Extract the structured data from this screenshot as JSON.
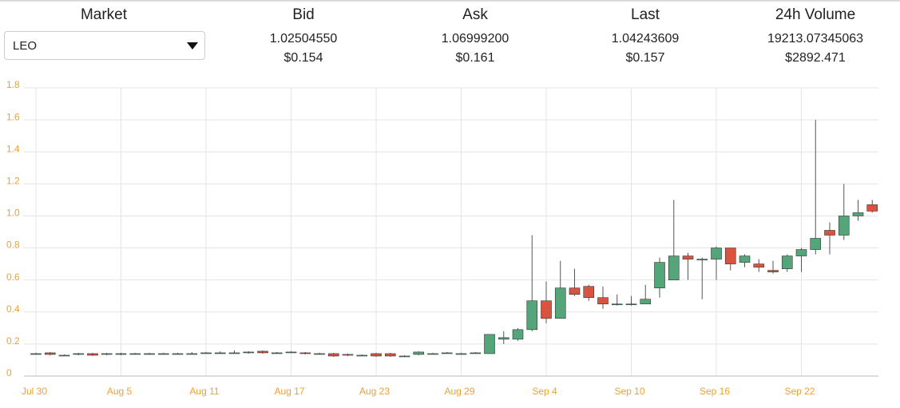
{
  "header": {
    "market_label": "Market",
    "selected_market": "LEO",
    "columns": [
      {
        "label": "Bid",
        "value": "1.02504550",
        "usd": "$0.154"
      },
      {
        "label": "Ask",
        "value": "1.06999200",
        "usd": "$0.161"
      },
      {
        "label": "Last",
        "value": "1.04243609",
        "usd": "$0.157"
      },
      {
        "label": "24h Volume",
        "value": "19213.07345063",
        "usd": "$2892.471"
      }
    ]
  },
  "chart_data": {
    "type": "candlestick",
    "up_color": "#55a57a",
    "down_color": "#d9533f",
    "grid": true,
    "categories": [
      "Jul 30",
      null,
      null,
      null,
      null,
      null,
      "Aug 5",
      null,
      null,
      null,
      null,
      null,
      "Aug 11",
      null,
      null,
      null,
      null,
      null,
      "Aug 17",
      null,
      null,
      null,
      null,
      null,
      "Aug 23",
      null,
      null,
      null,
      null,
      null,
      "Aug 29",
      null,
      null,
      null,
      null,
      null,
      "Sep 4",
      null,
      null,
      null,
      null,
      null,
      "Sep 10",
      null,
      null,
      null,
      null,
      null,
      "Sep 16",
      null,
      null,
      null,
      null,
      null,
      "Sep 22",
      null,
      null,
      null,
      null,
      null
    ],
    "open": [
      0.14,
      0.145,
      0.13,
      0.135,
      0.14,
      0.135,
      0.135,
      0.14,
      0.14,
      0.14,
      0.14,
      0.14,
      0.14,
      0.14,
      0.145,
      0.145,
      0.155,
      0.145,
      0.15,
      0.145,
      0.14,
      0.14,
      0.135,
      0.13,
      0.14,
      0.14,
      0.125,
      0.135,
      0.14,
      0.145,
      0.14,
      0.14,
      0.14,
      0.23,
      0.23,
      0.29,
      0.47,
      0.36,
      0.55,
      0.56,
      0.49,
      0.45,
      0.45,
      0.45,
      0.55,
      0.6,
      0.75,
      0.73,
      0.73,
      0.8,
      0.71,
      0.7,
      0.66,
      0.67,
      0.75,
      0.79,
      0.91,
      0.88,
      1.0,
      1.07
    ],
    "high": [
      0.145,
      0.15,
      0.135,
      0.145,
      0.145,
      0.145,
      0.145,
      0.145,
      0.145,
      0.145,
      0.145,
      0.15,
      0.15,
      0.155,
      0.16,
      0.155,
      0.16,
      0.15,
      0.155,
      0.15,
      0.145,
      0.145,
      0.14,
      0.135,
      0.145,
      0.145,
      0.13,
      0.155,
      0.145,
      0.15,
      0.145,
      0.15,
      0.26,
      0.28,
      0.3,
      0.88,
      0.59,
      0.72,
      0.67,
      0.57,
      0.56,
      0.51,
      0.5,
      0.57,
      0.74,
      1.1,
      0.77,
      0.74,
      0.81,
      0.8,
      0.76,
      0.73,
      0.72,
      0.76,
      0.8,
      1.6,
      0.96,
      1.2,
      1.1,
      1.1
    ],
    "low": [
      0.135,
      0.13,
      0.125,
      0.13,
      0.125,
      0.13,
      0.13,
      0.135,
      0.135,
      0.135,
      0.135,
      0.135,
      0.14,
      0.14,
      0.14,
      0.14,
      0.14,
      0.14,
      0.145,
      0.135,
      0.135,
      0.12,
      0.125,
      0.125,
      0.12,
      0.12,
      0.12,
      0.13,
      0.135,
      0.14,
      0.135,
      0.14,
      0.14,
      0.2,
      0.22,
      0.28,
      0.33,
      0.36,
      0.5,
      0.47,
      0.42,
      0.44,
      0.44,
      0.45,
      0.49,
      0.6,
      0.6,
      0.48,
      0.6,
      0.66,
      0.68,
      0.65,
      0.64,
      0.65,
      0.65,
      0.76,
      0.76,
      0.85,
      0.97,
      1.02
    ],
    "close": [
      0.14,
      0.135,
      0.13,
      0.14,
      0.13,
      0.14,
      0.14,
      0.14,
      0.14,
      0.14,
      0.14,
      0.14,
      0.145,
      0.145,
      0.145,
      0.15,
      0.145,
      0.145,
      0.15,
      0.14,
      0.14,
      0.125,
      0.13,
      0.13,
      0.125,
      0.125,
      0.125,
      0.15,
      0.14,
      0.145,
      0.14,
      0.145,
      0.26,
      0.24,
      0.29,
      0.47,
      0.36,
      0.55,
      0.51,
      0.49,
      0.45,
      0.45,
      0.45,
      0.48,
      0.71,
      0.75,
      0.73,
      0.73,
      0.8,
      0.7,
      0.75,
      0.68,
      0.65,
      0.75,
      0.79,
      0.86,
      0.88,
      1.0,
      1.02,
      1.03
    ],
    "ylim": [
      0,
      1.8
    ],
    "yticks": [
      0,
      0.2,
      0.4,
      0.6,
      0.8,
      {
        "value": 1,
        "label": "1.0"
      },
      1.2,
      1.4,
      1.6,
      1.8
    ]
  }
}
